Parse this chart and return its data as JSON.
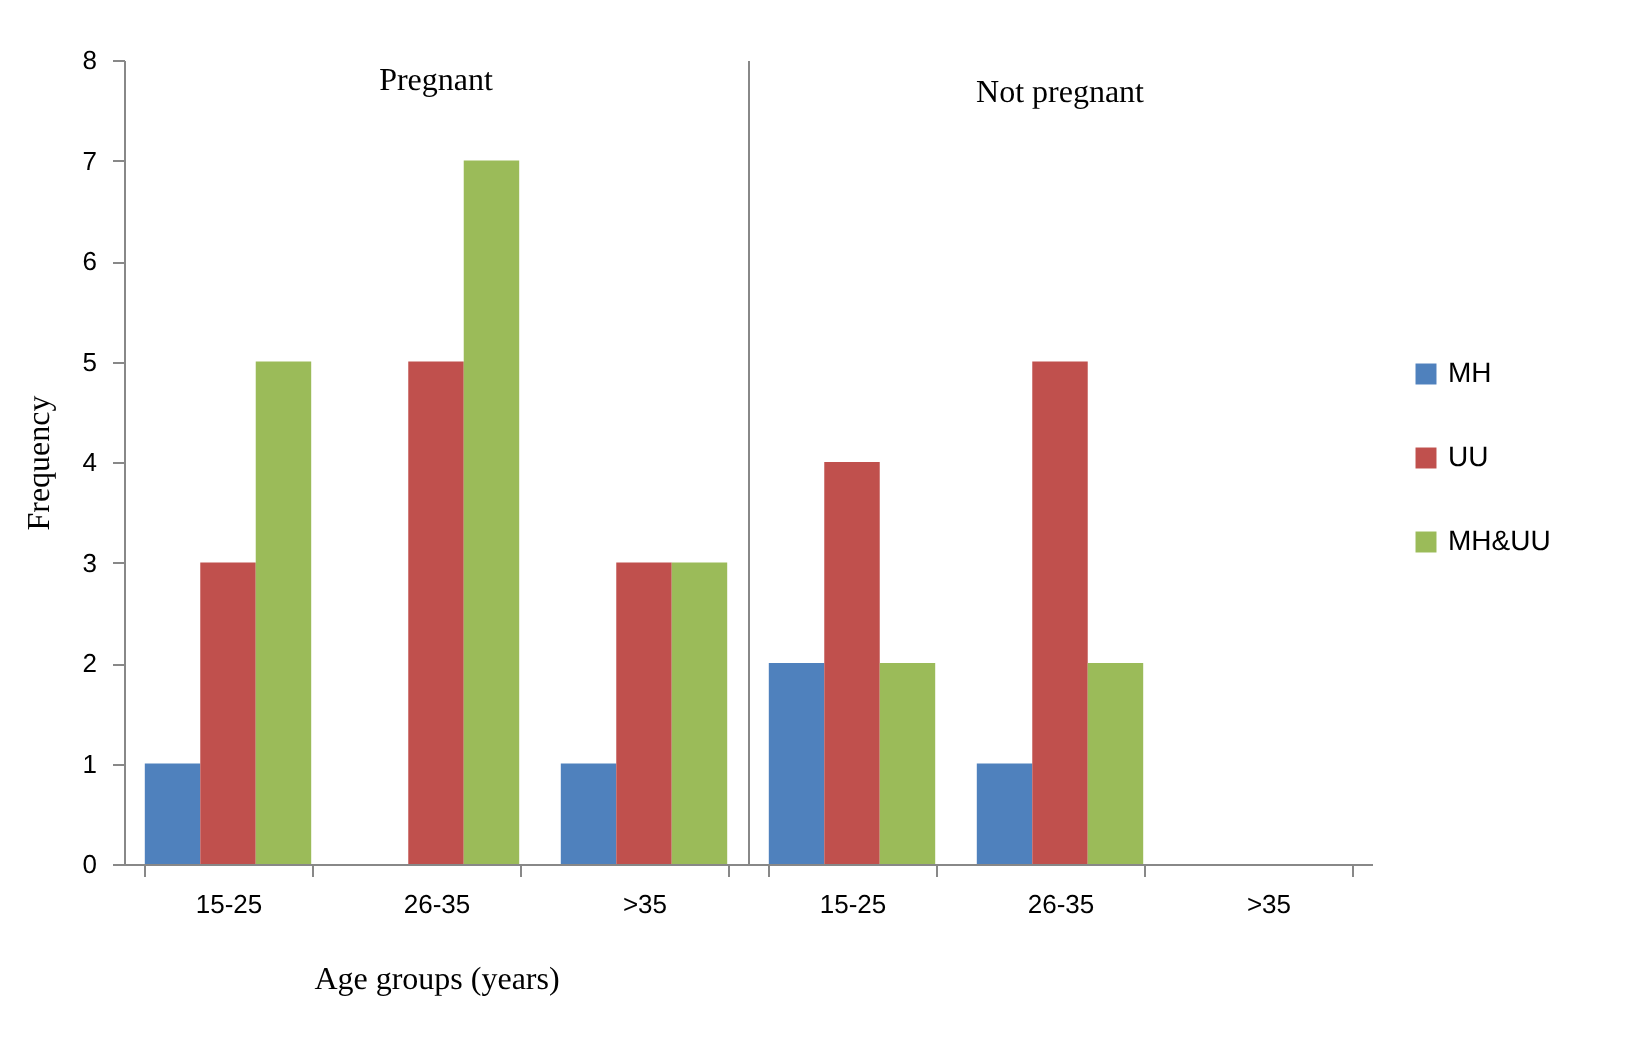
{
  "chart_data": [
    {
      "type": "bar",
      "title": "Pregnant",
      "xlabel": "Age groups (years)",
      "ylabel": "Frequency",
      "categories": [
        "15-25",
        "26-35",
        ">35"
      ],
      "series": [
        {
          "name": "MH",
          "color": "#4f81bd",
          "values": [
            1,
            0,
            1
          ]
        },
        {
          "name": "UU",
          "color": "#c0504d",
          "values": [
            3,
            5,
            3
          ]
        },
        {
          "name": "MH&UU",
          "color": "#9bbb59",
          "values": [
            5,
            7,
            3
          ]
        }
      ],
      "ylim": [
        0,
        8
      ],
      "yticks": [
        0,
        1,
        2,
        3,
        4,
        5,
        6,
        7,
        8
      ],
      "grid": false,
      "legend": "right"
    },
    {
      "type": "bar",
      "title": "Not pregnant",
      "categories": [
        "15-25",
        "26-35",
        ">35"
      ],
      "series": [
        {
          "name": "MH",
          "color": "#4f81bd",
          "values": [
            2,
            1,
            0
          ]
        },
        {
          "name": "UU",
          "color": "#c0504d",
          "values": [
            4,
            5,
            0
          ]
        },
        {
          "name": "MH&UU",
          "color": "#9bbb59",
          "values": [
            2,
            2,
            0
          ]
        }
      ],
      "ylim": [
        0,
        8
      ],
      "yticks": [
        0,
        1,
        2,
        3,
        4,
        5,
        6,
        7,
        8
      ],
      "tick_labels": "x",
      "grid": false,
      "legend": "right"
    }
  ]
}
